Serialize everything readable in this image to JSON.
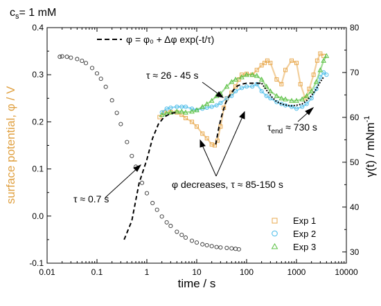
{
  "chart_data": {
    "type": "scatter",
    "title": "",
    "xlabel": "time / s",
    "ylabel_left": "surface potential, φ / V",
    "ylabel_right": "γ(t) / mNm",
    "ylabel_right_superscript": "-1",
    "xscale": "log",
    "xlim": [
      0.01,
      10000
    ],
    "ylim_left": [
      -0.1,
      0.4
    ],
    "ylim_right": [
      27.5,
      80
    ],
    "xticks": [
      "0.01",
      "0.1",
      "1",
      "10",
      "100",
      "1000",
      "10000"
    ],
    "yticks_left": [
      "-0.1",
      "0.0",
      "0.1",
      "0.2",
      "0.3",
      "0.4"
    ],
    "yticks_right": [
      "30",
      "40",
      "50",
      "60",
      "70",
      "80"
    ],
    "colors": {
      "left_axis_label": "#e0a040",
      "exp1": "#e8a84c",
      "exp2": "#3fb8e8",
      "exp3": "#58c040",
      "gamma_markers": "#333333",
      "fit": "#000000"
    },
    "legend": {
      "placement": "bottom-right",
      "entries": [
        "Exp 1",
        "Exp 2",
        "Exp 3"
      ]
    },
    "annotations": {
      "concentration": "c",
      "concentration_subscript": "s",
      "concentration_value": "= 1 mM",
      "equation": "φ = φ₀ + Δφ exp(-t/τ)",
      "tau_fast": "τ ≈ 0.7  s",
      "tau_mid": "τ ≈ 26 - 45  s",
      "tau_end_prefix": "τ",
      "tau_end_subscript": "end",
      "tau_end_value": " ≈ 730  s",
      "phi_decreases": "φ decreases, τ ≈ 85-150  s"
    },
    "series": [
      {
        "name": "γ(t)",
        "axis": "right",
        "marker": "circle-open",
        "x": [
          0.018,
          0.02,
          0.025,
          0.03,
          0.04,
          0.05,
          0.06,
          0.08,
          0.1,
          0.12,
          0.15,
          0.2,
          0.25,
          0.3,
          0.4,
          0.5,
          0.6,
          0.8,
          1.0,
          1.3,
          1.6,
          2.0,
          2.5,
          3.0,
          4.0,
          5.0,
          6.0,
          8.0,
          10,
          13,
          16,
          20,
          25,
          30,
          40,
          50,
          60,
          70
        ],
        "y": [
          73.5,
          73.6,
          73.5,
          73.3,
          73.0,
          72.6,
          72.1,
          71.0,
          69.8,
          68.6,
          66.8,
          63.8,
          61.0,
          58.5,
          54.5,
          51.4,
          49.0,
          45.4,
          43.1,
          40.9,
          39.4,
          37.9,
          36.6,
          35.8,
          34.5,
          33.8,
          33.2,
          32.5,
          32.1,
          31.7,
          31.5,
          31.3,
          31.1,
          31.0,
          30.9,
          30.8,
          30.7,
          30.6
        ]
      },
      {
        "name": "Exp 1",
        "axis": "left",
        "marker": "square-open",
        "x": [
          1.8,
          2.2,
          3,
          4,
          5,
          6,
          8,
          10,
          13,
          16,
          20,
          23,
          26,
          30,
          35,
          40,
          50,
          60,
          70,
          80,
          100,
          130,
          160,
          200,
          230,
          260,
          300,
          400,
          500,
          600,
          800,
          1000,
          1200,
          1500,
          1800,
          2200,
          2600,
          3000,
          3500
        ],
        "y": [
          0.21,
          0.22,
          0.221,
          0.22,
          0.215,
          0.208,
          0.2,
          0.19,
          0.175,
          0.165,
          0.152,
          0.15,
          0.16,
          0.19,
          0.23,
          0.25,
          0.262,
          0.275,
          0.29,
          0.3,
          0.302,
          0.3,
          0.31,
          0.32,
          0.325,
          0.33,
          0.325,
          0.29,
          0.28,
          0.31,
          0.33,
          0.325,
          0.28,
          0.25,
          0.27,
          0.3,
          0.33,
          0.345,
          0.34
        ]
      },
      {
        "name": "Exp 2",
        "axis": "left",
        "marker": "circle-open",
        "x": [
          2,
          2.5,
          3,
          4,
          5,
          6,
          8,
          10,
          13,
          16,
          20,
          25,
          30,
          40,
          50,
          60,
          80,
          100,
          130,
          160,
          200,
          250,
          300,
          400,
          500,
          600,
          800,
          1000,
          1300,
          1600,
          2000,
          2500,
          3000,
          3500,
          4000
        ],
        "y": [
          0.22,
          0.228,
          0.23,
          0.232,
          0.232,
          0.232,
          0.228,
          0.225,
          0.228,
          0.23,
          0.232,
          0.235,
          0.24,
          0.25,
          0.255,
          0.265,
          0.272,
          0.275,
          0.275,
          0.28,
          0.265,
          0.255,
          0.25,
          0.242,
          0.238,
          0.235,
          0.232,
          0.228,
          0.232,
          0.238,
          0.25,
          0.27,
          0.295,
          0.305,
          0.3
        ]
      },
      {
        "name": "Exp 3",
        "axis": "left",
        "marker": "triangle-open",
        "x": [
          2,
          2.5,
          3,
          4,
          5,
          6,
          8,
          10,
          13,
          16,
          20,
          25,
          30,
          40,
          50,
          60,
          80,
          100,
          130,
          160,
          200,
          250,
          300,
          400,
          500,
          600,
          800,
          1000,
          1300,
          1600,
          2000,
          2500,
          3000,
          3500,
          4000
        ],
        "y": [
          0.215,
          0.218,
          0.22,
          0.222,
          0.222,
          0.22,
          0.222,
          0.225,
          0.232,
          0.238,
          0.245,
          0.255,
          0.26,
          0.275,
          0.285,
          0.29,
          0.295,
          0.3,
          0.3,
          0.298,
          0.29,
          0.275,
          0.265,
          0.255,
          0.25,
          0.248,
          0.245,
          0.245,
          0.248,
          0.255,
          0.265,
          0.285,
          0.31,
          0.33,
          0.34
        ]
      }
    ],
    "fits": [
      {
        "name": "fit-fast",
        "axis": "left",
        "style": "dashed",
        "x": [
          0.35,
          0.5,
          0.7,
          1.0,
          1.3,
          1.7,
          2.2,
          3.0,
          4.0
        ],
        "y": [
          -0.05,
          -0.01,
          0.07,
          0.12,
          0.165,
          0.195,
          0.21,
          0.218,
          0.22
        ]
      },
      {
        "name": "fit-mid",
        "axis": "left",
        "style": "dashed",
        "x": [
          24,
          28,
          32,
          38,
          45,
          55,
          65,
          80,
          100,
          130,
          160,
          200
        ],
        "y": [
          0.152,
          0.19,
          0.215,
          0.24,
          0.255,
          0.268,
          0.276,
          0.28,
          0.282,
          0.282,
          0.282,
          0.282
        ]
      },
      {
        "name": "fit-end",
        "axis": "left",
        "style": "dotted",
        "x": [
          200,
          260,
          320,
          400,
          500,
          650,
          800,
          1000,
          1300,
          1600,
          2000,
          2500,
          3000,
          3500
        ],
        "y": [
          0.282,
          0.265,
          0.253,
          0.243,
          0.238,
          0.235,
          0.234,
          0.235,
          0.238,
          0.245,
          0.256,
          0.27,
          0.285,
          0.295
        ]
      }
    ]
  }
}
